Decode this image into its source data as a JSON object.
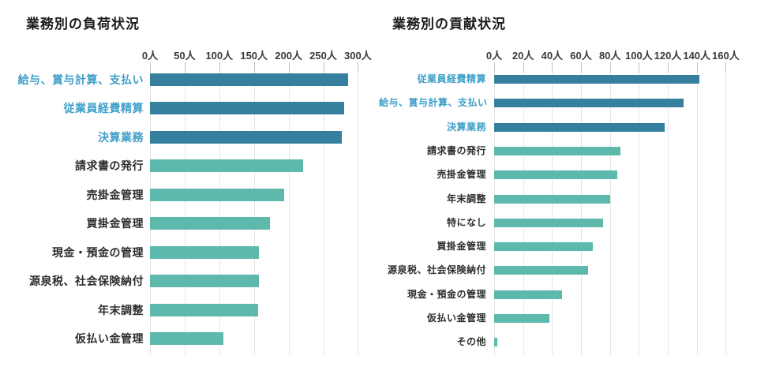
{
  "chart_data": [
    {
      "type": "bar",
      "orientation": "horizontal",
      "title": "業務別の負荷状況",
      "unit": "人",
      "xlim": [
        0,
        300
      ],
      "tick_step": 50,
      "tick_labels": [
        "0人",
        "50人",
        "100人",
        "150人",
        "200人",
        "250人",
        "300人"
      ],
      "grid": true,
      "legend": "none",
      "highlight_count": 3,
      "categories": [
        "給与、賞与計算、支払い",
        "従業員経費精算",
        "決算業務",
        "請求書の発行",
        "売掛金管理",
        "買掛金管理",
        "現金・預金の管理",
        "源泉税、社会保険納付",
        "年末調整",
        "仮払い金管理"
      ],
      "values": [
        286,
        280,
        277,
        221,
        194,
        173,
        157,
        157,
        156,
        106
      ]
    },
    {
      "type": "bar",
      "orientation": "horizontal",
      "title": "業務別の貢献状況",
      "unit": "人",
      "xlim": [
        0,
        160
      ],
      "tick_step": 20,
      "tick_labels": [
        "0人",
        "20人",
        "40人",
        "60人",
        "80人",
        "100人",
        "120人",
        "140人",
        "160人"
      ],
      "grid": true,
      "legend": "none",
      "highlight_count": 3,
      "categories": [
        "従業員経費精算",
        "給与、賞与計算、支払い",
        "決算業務",
        "請求書の発行",
        "売掛金管理",
        "年末調整",
        "特になし",
        "買掛金管理",
        "源泉税、社会保険納付",
        "現金・預金の管理",
        "仮払い金管理",
        "その他"
      ],
      "values": [
        142,
        131,
        118,
        87,
        85,
        80,
        75,
        68,
        65,
        47,
        38,
        2
      ]
    }
  ],
  "colors": {
    "bar_highlight": "#35809E",
    "bar_default": "#5DB9AC",
    "label_highlight": "#3E9FC9",
    "label_default": "#2d2d2d",
    "title_text": "#1b1b1b",
    "axis_text": "#3a3a3a",
    "gridline": "#e5e5e5",
    "tick": "#c2c2c2",
    "background": "#ffffff"
  }
}
